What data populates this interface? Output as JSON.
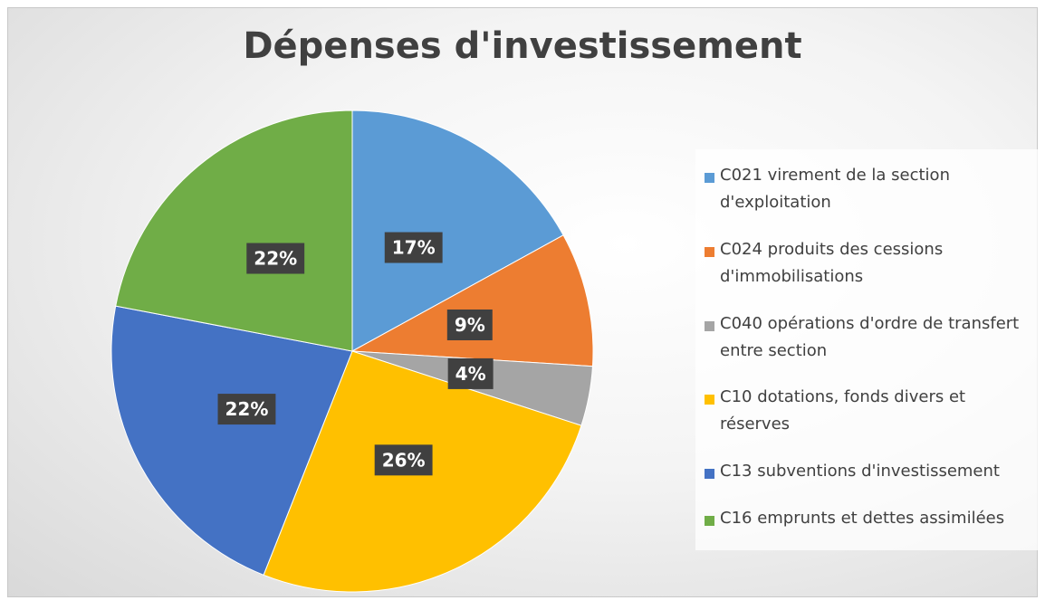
{
  "chart_data": {
    "type": "pie",
    "title": "Dépenses d'investissement",
    "categories": [
      "C021 virement de la section d'exploitation",
      "C024 produits des cessions d'immobilisations",
      "C040 opérations d'ordre de transfert entre section",
      "C10 dotations, fonds divers et réserves",
      "C13 subventions d'investissement",
      "C16 emprunts et dettes assimilées"
    ],
    "values": [
      17,
      9,
      4,
      26,
      22,
      22
    ],
    "value_labels": [
      "17%",
      "9%",
      "4%",
      "26%",
      "22%",
      "22%"
    ],
    "colors": [
      "#5b9bd5",
      "#ed7d31",
      "#a5a5a5",
      "#ffc000",
      "#4472c4",
      "#70ad47"
    ],
    "legend": "right"
  }
}
